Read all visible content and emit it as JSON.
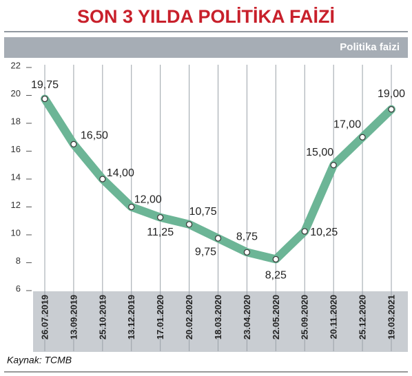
{
  "chart_data": {
    "type": "line",
    "title": "SON 3 YILDA POLİTİKA FAİZİ",
    "subtitle": "Politika faizi",
    "source": "Kaynak: TCMB",
    "categories": [
      "26.07.2019",
      "13.09.2019",
      "25.10.2019",
      "13.12.2019",
      "17.01.2020",
      "20.02.2020",
      "18.03.2020",
      "23.04.2020",
      "22.05.2020",
      "25.09.2020",
      "20.11.2020",
      "25.12.2020",
      "19.03.2021"
    ],
    "series": [
      {
        "name": "Politika faizi",
        "color": "#6cb596",
        "values": [
          19.75,
          16.5,
          14,
          12,
          11.25,
          10.75,
          9.75,
          8.75,
          8.25,
          10.25,
          15,
          17,
          19
        ],
        "value_labels": [
          "19,75",
          "16,50",
          "14,00",
          "12,00",
          "11,25",
          "10,75",
          "9,75",
          "8,75",
          "8,25",
          "10,25",
          "15,00",
          "17,00",
          "19,00"
        ]
      }
    ],
    "ylim": [
      6,
      22
    ],
    "yticks": [
      6,
      8,
      10,
      12,
      14,
      16,
      18,
      20,
      22
    ]
  }
}
